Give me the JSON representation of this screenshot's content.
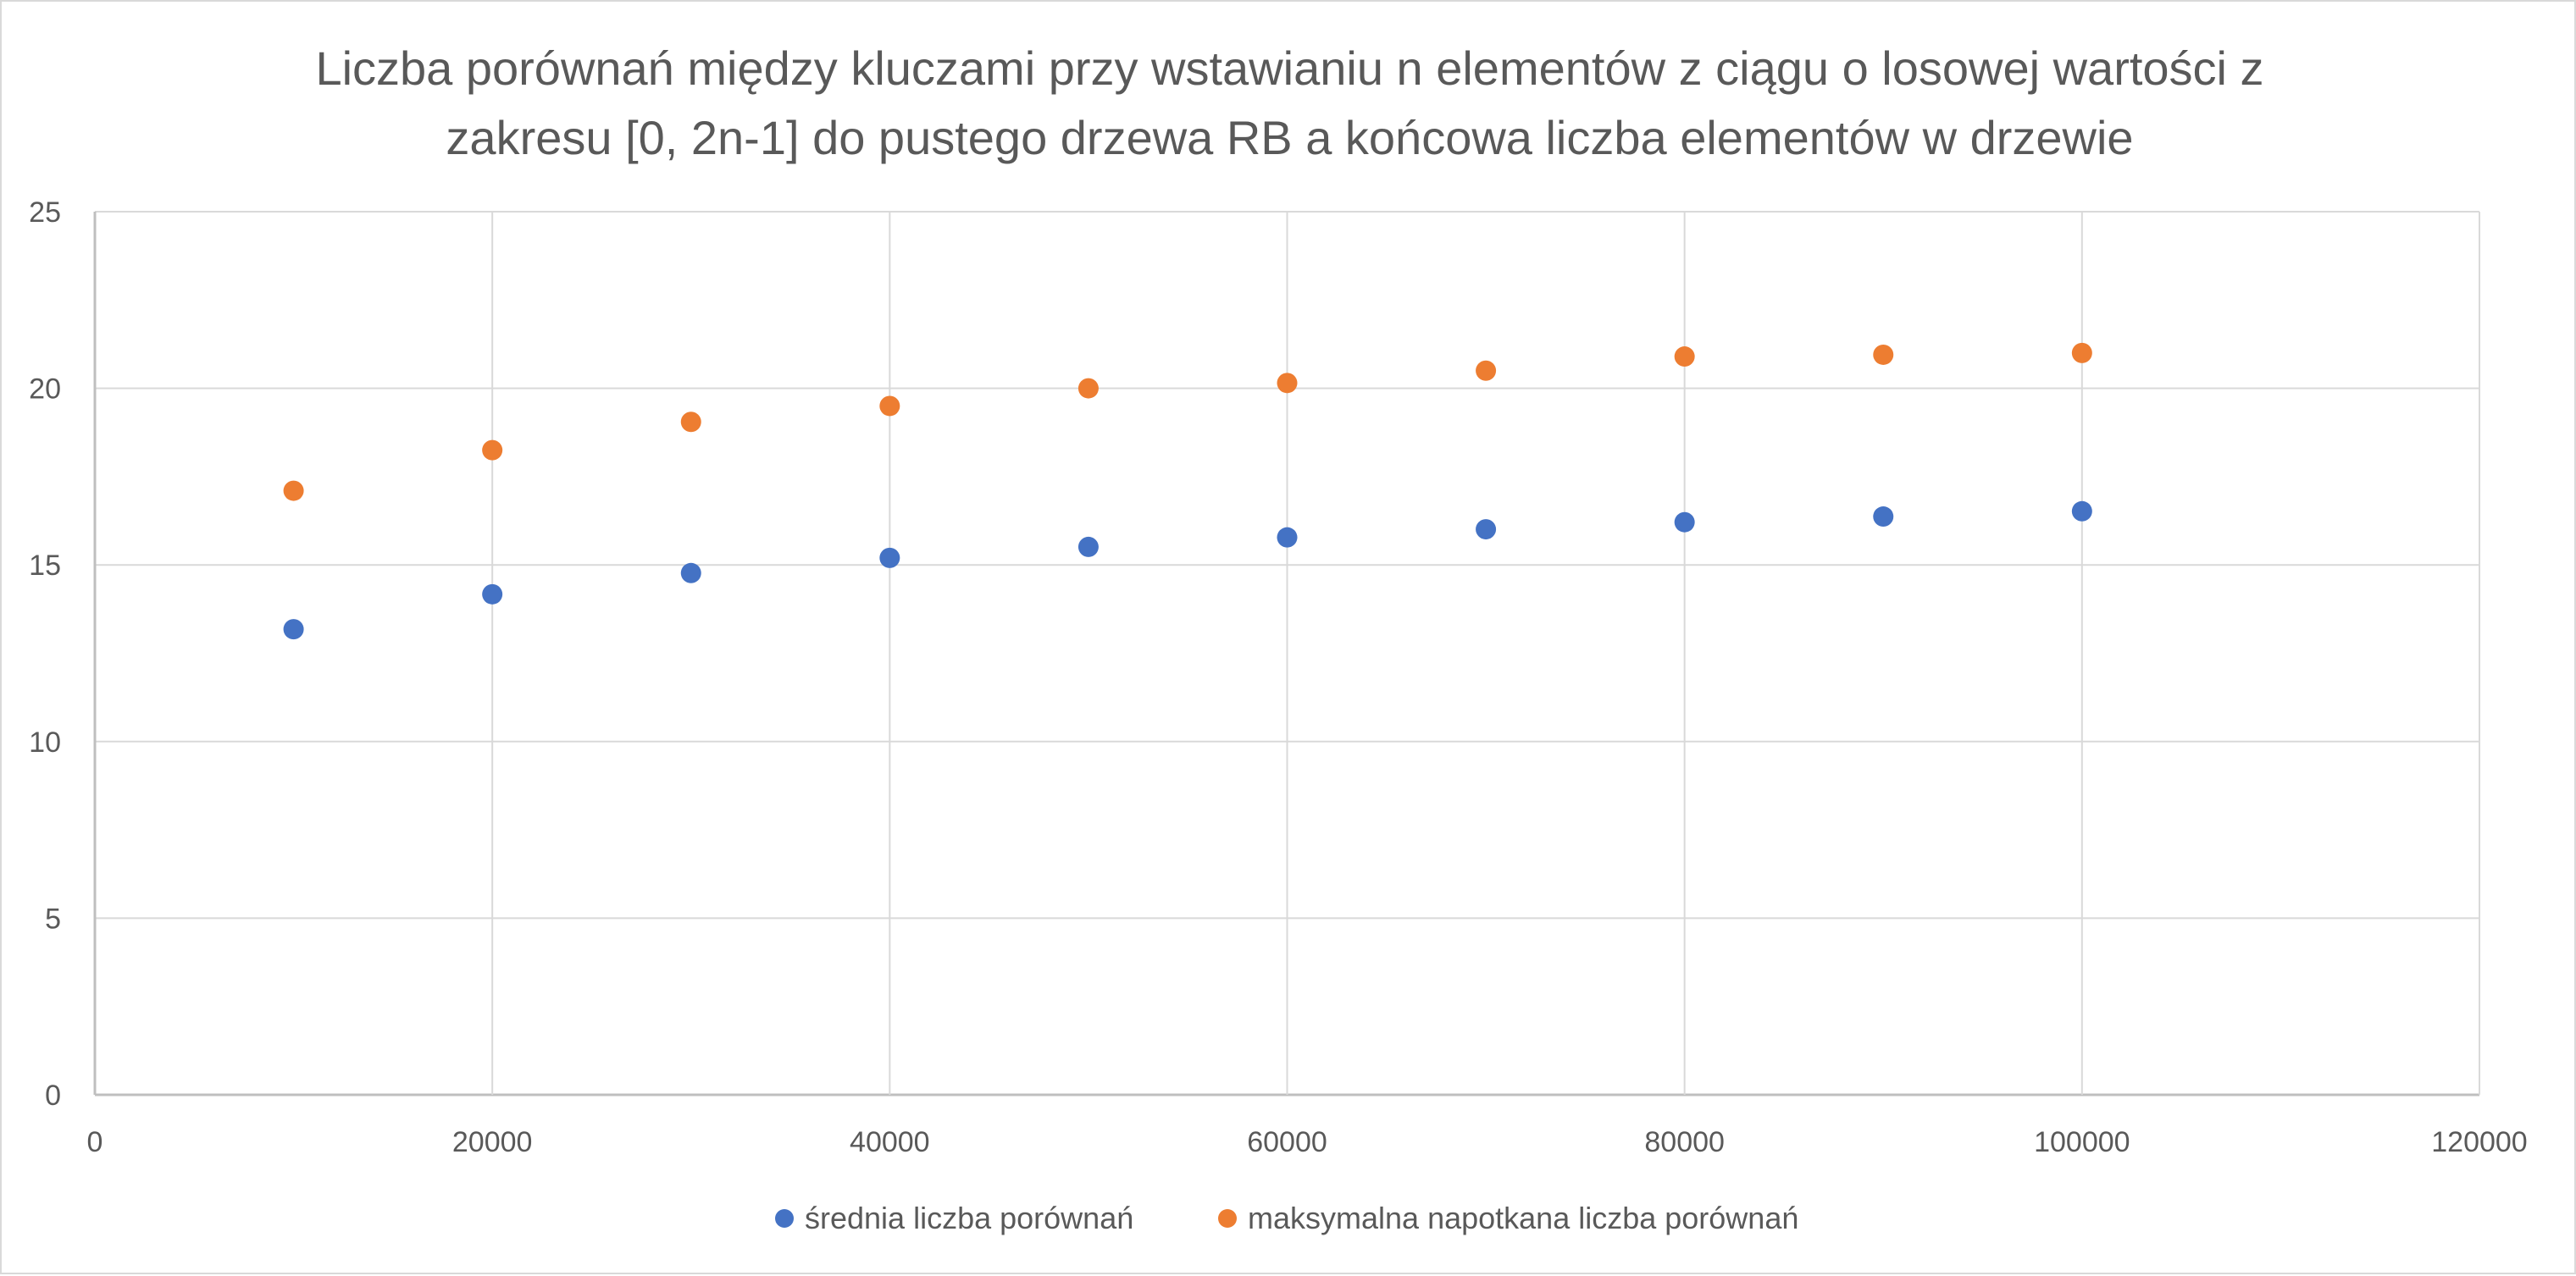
{
  "chart_data": {
    "type": "scatter",
    "title_lines": [
      "Liczba porównań między kluczami przy wstawianiu n elementów z ciągu o losowej wartości z",
      "zakresu [0, 2n-1] do pustego drzewa RB a końcowa liczba elementów w drzewie"
    ],
    "xlabel": "",
    "ylabel": "",
    "xlim": [
      0,
      120000
    ],
    "ylim": [
      0,
      25
    ],
    "x_ticks": [
      0,
      20000,
      40000,
      60000,
      80000,
      100000,
      120000
    ],
    "y_ticks": [
      0,
      5,
      10,
      15,
      20,
      25
    ],
    "grid": true,
    "legend_position": "bottom",
    "x": [
      10000,
      20000,
      30000,
      40000,
      50000,
      60000,
      70000,
      80000,
      90000,
      100000
    ],
    "series": [
      {
        "name": "średnia liczba porównań",
        "color": "#4472c4",
        "values": [
          13.18,
          14.17,
          14.77,
          15.2,
          15.51,
          15.78,
          16.01,
          16.21,
          16.37,
          16.52
        ]
      },
      {
        "name": "maksymalna napotkana liczba porównań",
        "color": "#ed7d31",
        "values": [
          17.1,
          18.25,
          19.05,
          19.5,
          20.0,
          20.15,
          20.5,
          20.9,
          20.95,
          21.0
        ]
      }
    ]
  }
}
